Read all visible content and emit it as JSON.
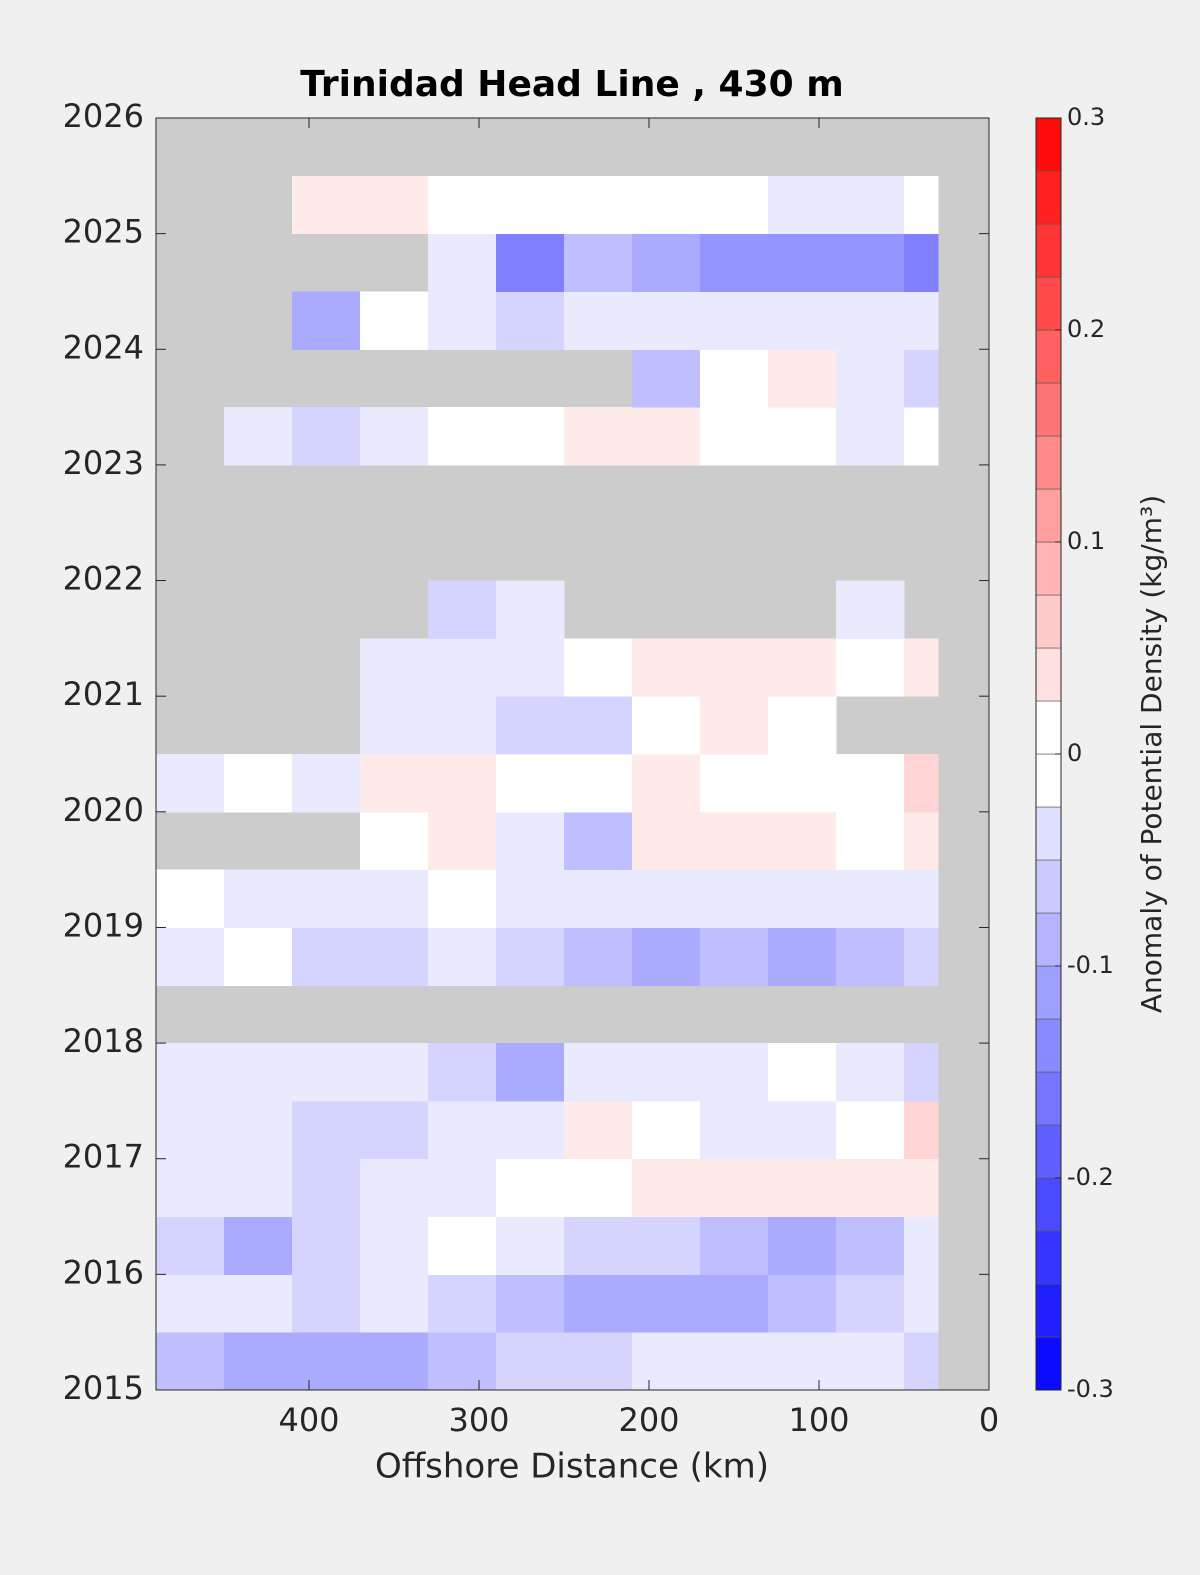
{
  "chart_data": {
    "type": "contour",
    "title": "Trinidad Head Line , 430 m",
    "xlabel": "Offshore Distance (km)",
    "xlim": [
      490,
      0
    ],
    "xticks": [
      400,
      300,
      200,
      100,
      0
    ],
    "ylim": [
      2015,
      2026
    ],
    "yticks": [
      2015,
      2016,
      2017,
      2018,
      2019,
      2020,
      2021,
      2022,
      2023,
      2024,
      2025,
      2026
    ],
    "x_edges": [
      490,
      450,
      410,
      370,
      330,
      290,
      250,
      210,
      170,
      130,
      90,
      50,
      30
    ],
    "y_edges": [
      2015,
      2015.5,
      2016,
      2016.5,
      2017,
      2017.5,
      2018,
      2018.5,
      2019,
      2019.5,
      2020,
      2020.5,
      2021,
      2021.5,
      2022,
      2022.5,
      2023,
      2023.5,
      2024,
      2024.5,
      2025,
      2025.5,
      2026
    ],
    "z": [
      [
        -0.075,
        -0.1,
        -0.1,
        -0.1,
        -0.075,
        -0.05,
        -0.05,
        -0.025,
        -0.025,
        -0.025,
        -0.025,
        -0.05
      ],
      [
        -0.025,
        -0.025,
        -0.05,
        -0.025,
        -0.05,
        -0.075,
        -0.1,
        -0.1,
        -0.1,
        -0.075,
        -0.05,
        -0.025
      ],
      [
        -0.05,
        -0.1,
        -0.05,
        -0.025,
        0,
        -0.025,
        -0.05,
        -0.05,
        -0.075,
        -0.1,
        -0.075,
        -0.025
      ],
      [
        -0.025,
        -0.025,
        -0.05,
        -0.025,
        -0.025,
        0,
        0,
        0.025,
        0.025,
        0.025,
        0.025,
        0.025
      ],
      [
        -0.025,
        -0.025,
        -0.05,
        -0.05,
        -0.025,
        -0.025,
        0.025,
        0,
        -0.025,
        -0.025,
        0,
        0.05
      ],
      [
        -0.025,
        -0.025,
        -0.025,
        -0.025,
        -0.05,
        -0.1,
        -0.025,
        -0.025,
        -0.025,
        0,
        -0.025,
        -0.05
      ],
      [
        null,
        null,
        null,
        null,
        null,
        null,
        null,
        null,
        null,
        null,
        null,
        null
      ],
      [
        -0.025,
        0,
        -0.05,
        -0.05,
        -0.025,
        -0.05,
        -0.075,
        -0.1,
        -0.075,
        -0.1,
        -0.075,
        -0.05
      ],
      [
        0,
        -0.025,
        -0.025,
        -0.025,
        0,
        -0.025,
        -0.025,
        -0.025,
        -0.025,
        -0.025,
        -0.025,
        -0.025
      ],
      [
        null,
        null,
        null,
        0,
        0.025,
        -0.025,
        -0.075,
        0.025,
        0.025,
        0.025,
        0,
        0.025
      ],
      [
        -0.025,
        0,
        -0.025,
        0.025,
        0.025,
        0,
        0,
        0.025,
        0,
        0,
        0,
        0.05
      ],
      [
        null,
        null,
        null,
        -0.025,
        -0.025,
        -0.05,
        -0.05,
        0,
        0.025,
        0,
        null,
        null
      ],
      [
        null,
        null,
        null,
        -0.025,
        -0.025,
        -0.025,
        0,
        0.025,
        0.025,
        0.025,
        0,
        0.025
      ],
      [
        null,
        null,
        null,
        null,
        -0.05,
        -0.025,
        null,
        null,
        null,
        null,
        -0.025,
        null
      ],
      [
        null,
        null,
        null,
        null,
        null,
        null,
        null,
        null,
        null,
        null,
        null,
        null
      ],
      [
        null,
        null,
        null,
        null,
        null,
        null,
        null,
        null,
        null,
        null,
        null,
        null
      ],
      [
        null,
        -0.025,
        -0.05,
        -0.025,
        0,
        0,
        0.025,
        0.025,
        0,
        0,
        -0.025,
        0
      ],
      [
        null,
        null,
        null,
        null,
        null,
        null,
        null,
        -0.075,
        0,
        0.025,
        -0.025,
        -0.05
      ],
      [
        null,
        null,
        -0.1,
        0,
        -0.025,
        -0.05,
        -0.025,
        -0.025,
        -0.025,
        -0.025,
        -0.025,
        -0.025
      ],
      [
        null,
        null,
        null,
        null,
        -0.025,
        -0.15,
        -0.075,
        -0.1,
        -0.125,
        -0.125,
        -0.125,
        -0.15
      ],
      [
        null,
        null,
        0.025,
        0.025,
        0,
        0,
        0,
        0,
        0,
        -0.025,
        -0.025,
        0
      ],
      [
        null,
        null,
        null,
        null,
        null,
        null,
        null,
        null,
        null,
        null,
        null,
        null
      ]
    ],
    "missing_color": "#cccccc",
    "colorbar": {
      "label": "Anomaly of Potential Density (kg/m³)",
      "lim": [
        -0.3,
        0.3
      ],
      "ticks": [
        -0.3,
        -0.2,
        -0.1,
        0,
        0.1,
        0.2,
        0.3
      ],
      "levels": [
        -0.3,
        -0.275,
        -0.25,
        -0.225,
        -0.2,
        -0.175,
        -0.15,
        -0.125,
        -0.1,
        -0.075,
        -0.05,
        -0.025,
        0,
        0.025,
        0.05,
        0.075,
        0.1,
        0.125,
        0.15,
        0.175,
        0.2,
        0.225,
        0.25,
        0.275,
        0.3
      ]
    }
  }
}
